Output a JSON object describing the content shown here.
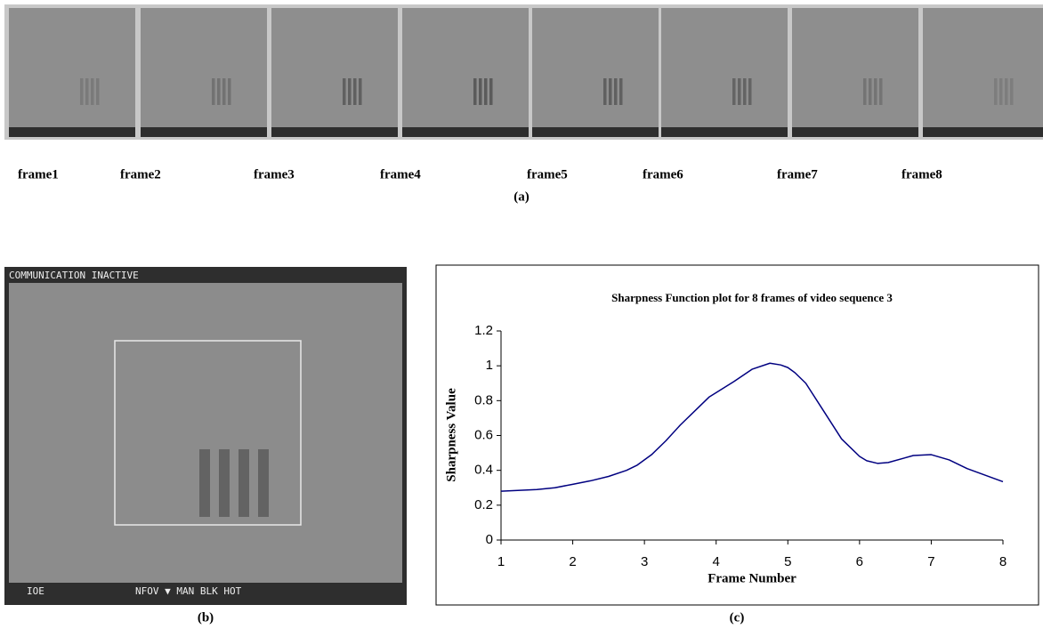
{
  "figure_a": {
    "frames": [
      "frame1",
      "frame2",
      "frame3",
      "frame4",
      "frame5",
      "frame6",
      "frame7",
      "frame8"
    ],
    "caption": "(a)"
  },
  "figure_b": {
    "overlay_top": "COMMUNICATION INACTIVE",
    "overlay_bottom_left": "IOE",
    "overlay_bottom_right": "NFOV ▼ MAN BLK HOT",
    "caption": "(b)"
  },
  "chart_data": {
    "type": "line",
    "title": "Sharpness Function plot for 8 frames of video sequence 3",
    "x_label": "Frame Number",
    "y_label": "Sharpness Value",
    "x": [
      1,
      1.5,
      1.75,
      2,
      2.25,
      2.5,
      2.75,
      2.9,
      3.1,
      3.3,
      3.5,
      3.75,
      3.9,
      4.25,
      4.5,
      4.75,
      4.9,
      5,
      5.1,
      5.25,
      5.5,
      5.75,
      6,
      6.1,
      6.25,
      6.4,
      6.75,
      7,
      7.25,
      7.5,
      8
    ],
    "values": [
      0.28,
      0.29,
      0.3,
      0.32,
      0.34,
      0.365,
      0.4,
      0.43,
      0.49,
      0.57,
      0.66,
      0.76,
      0.82,
      0.91,
      0.98,
      1.015,
      1.005,
      0.99,
      0.96,
      0.9,
      0.74,
      0.58,
      0.48,
      0.455,
      0.44,
      0.445,
      0.485,
      0.49,
      0.46,
      0.41,
      0.335
    ],
    "color": "#000080",
    "xlim": [
      1,
      8
    ],
    "xticks": [
      1,
      2,
      3,
      4,
      5,
      6,
      7,
      8
    ],
    "ylim": [
      0,
      1.2
    ],
    "yticks": [
      0,
      0.2,
      0.4,
      0.6,
      0.8,
      1,
      1.2
    ]
  },
  "caption_c": "(c)"
}
